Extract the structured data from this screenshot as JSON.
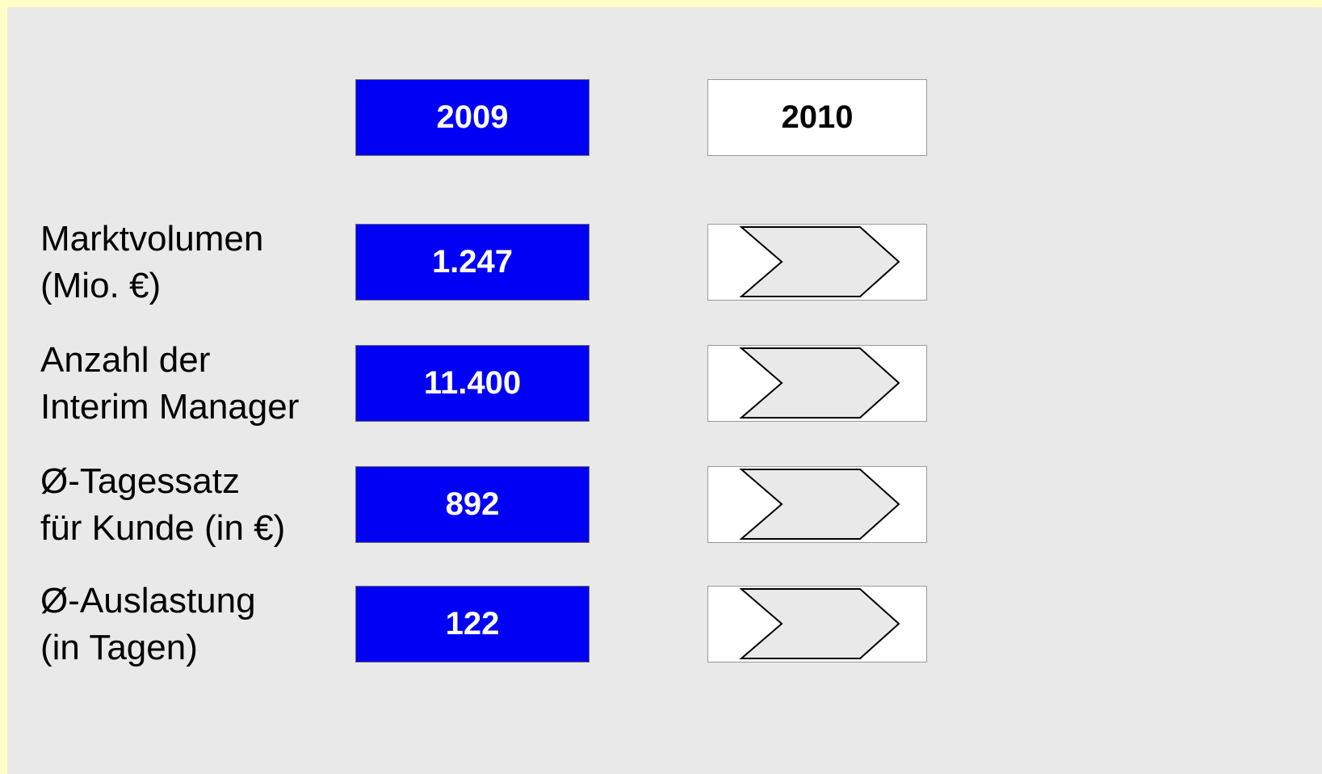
{
  "header": {
    "columns": [
      "2009",
      "2010"
    ]
  },
  "rows": [
    {
      "label": [
        "Marktvolumen",
        "(Mio. €)"
      ],
      "value": "1.247"
    },
    {
      "label": [
        "Anzahl der",
        "Interim Manager"
      ],
      "value": "11.400"
    },
    {
      "label": [
        "Ø-Tagessatz",
        "für Kunde (in €)"
      ],
      "value": "892"
    },
    {
      "label": [
        "Ø-Auslastung",
        "(in Tagen)"
      ],
      "value": "122"
    }
  ]
}
